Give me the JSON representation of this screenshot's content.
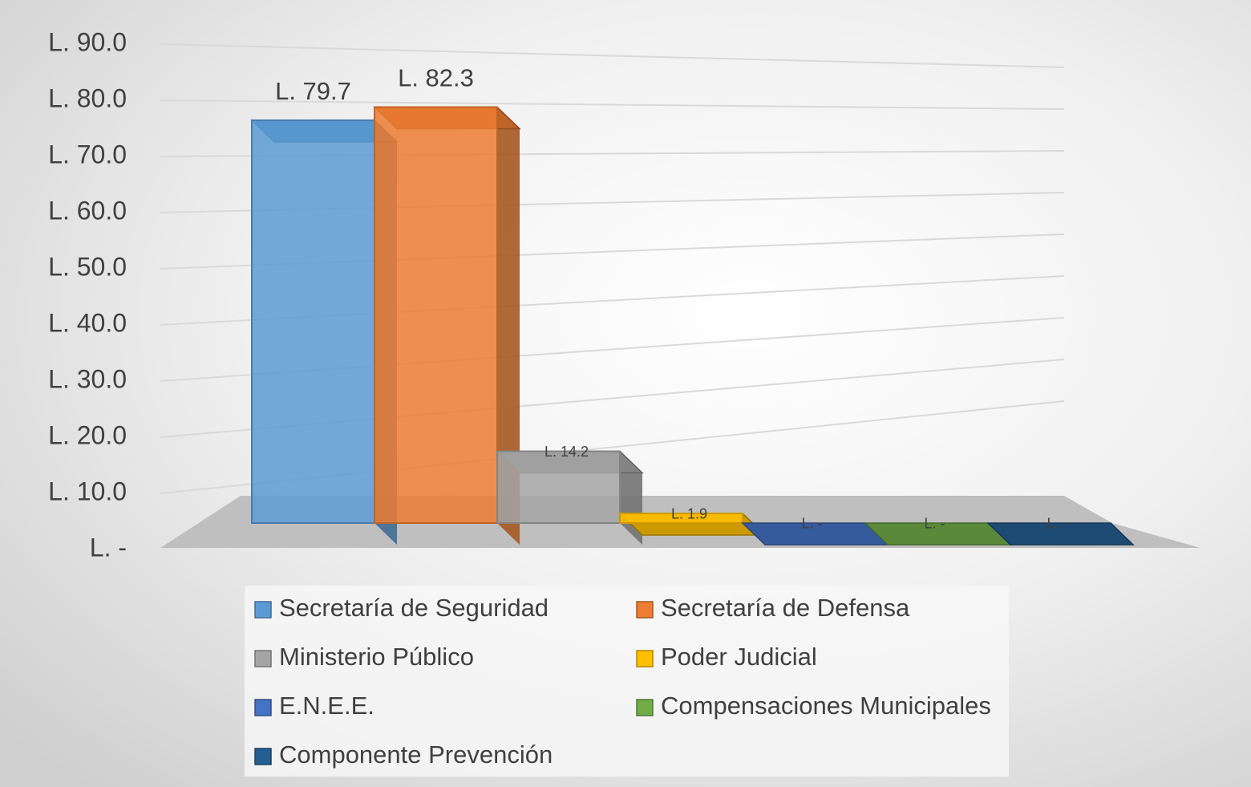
{
  "chart_data": {
    "type": "bar",
    "categories": [
      null
    ],
    "series": [
      {
        "name": "Secretaría de Seguridad",
        "color": "#5b9bd5",
        "values": [
          79.7
        ],
        "value_labels": [
          "L. 79.7"
        ]
      },
      {
        "name": "Secretaría de Defensa",
        "color": "#ed7d31",
        "values": [
          82.3
        ],
        "value_labels": [
          "L. 82.3"
        ]
      },
      {
        "name": "Ministerio Público",
        "color": "#a5a5a5",
        "values": [
          14.2
        ],
        "value_labels": [
          "L. 14.2"
        ]
      },
      {
        "name": "Poder Judicial",
        "color": "#ffc000",
        "values": [
          1.9
        ],
        "value_labels": [
          "L. 1.9"
        ]
      },
      {
        "name": "E.N.E.E.",
        "color": "#4472c4",
        "values": [
          0
        ],
        "value_labels": [
          "L. -"
        ]
      },
      {
        "name": "Compensaciones Municipales",
        "color": "#70ad47",
        "values": [
          0
        ],
        "value_labels": [
          "L. -"
        ]
      },
      {
        "name": "Componente Prevención",
        "color": "#255e91",
        "values": [
          0
        ],
        "value_labels": [
          "L. -"
        ]
      }
    ],
    "ylim": [
      0,
      90
    ],
    "yticks": [
      {
        "value": 0,
        "label": "L. -"
      },
      {
        "value": 10,
        "label": "L. 10.0"
      },
      {
        "value": 20,
        "label": "L. 20.0"
      },
      {
        "value": 30,
        "label": "L. 30.0"
      },
      {
        "value": 40,
        "label": "L. 40.0"
      },
      {
        "value": 50,
        "label": "L. 50.0"
      },
      {
        "value": 60,
        "label": "L. 60.0"
      },
      {
        "value": 70,
        "label": "L. 70.0"
      },
      {
        "value": 80,
        "label": "L. 80.0"
      },
      {
        "value": 90,
        "label": "L. 90.0"
      }
    ],
    "grid": true,
    "legend": "bottom"
  }
}
